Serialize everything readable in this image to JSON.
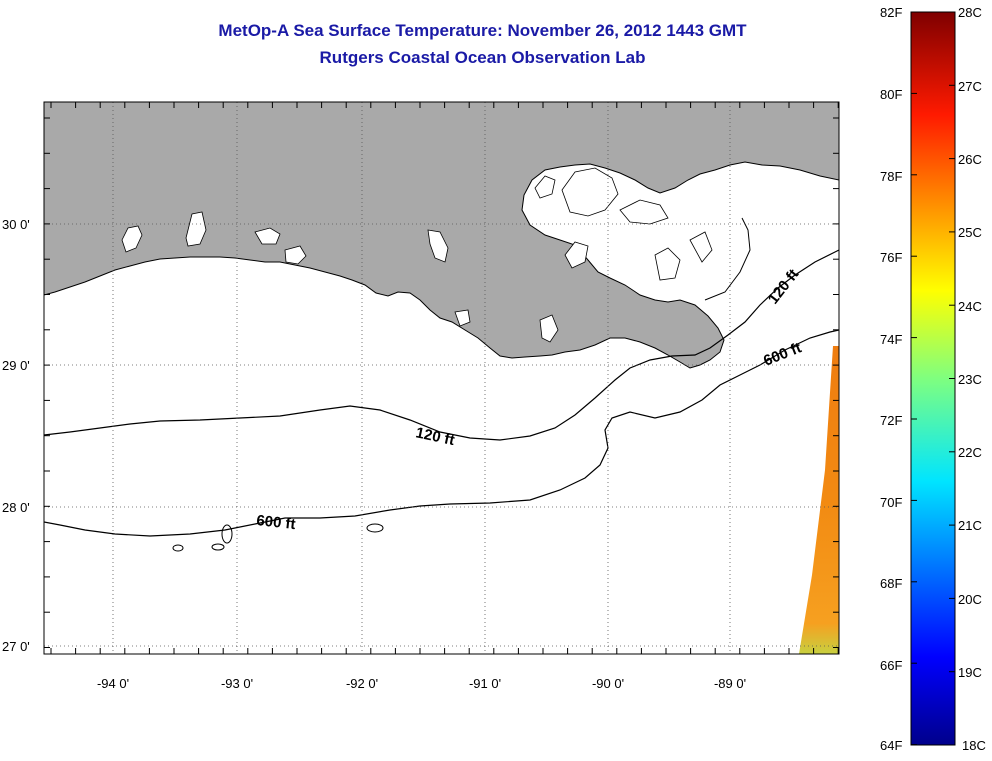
{
  "title": {
    "line1": "MetOp-A Sea Surface Temperature:  November 26, 2012 1443 GMT",
    "line2": "Rutgers Coastal Ocean Observation Lab"
  },
  "map": {
    "lat_labels": [
      "30 0'",
      "29 0'",
      "28 0'",
      "27 0'"
    ],
    "lon_labels": [
      "-94 0'",
      "-93 0'",
      "-92 0'",
      "-91 0'",
      "-90 0'",
      "-89 0'"
    ],
    "contour_labels": [
      "120 ft",
      "600 ft",
      "120 ft",
      "600 ft"
    ],
    "land_color": "#a9a9a9",
    "water_color": "#ffffff"
  },
  "colorbar": {
    "f_labels": [
      "82F",
      "80F",
      "78F",
      "76F",
      "74F",
      "72F",
      "70F",
      "68F",
      "66F",
      "64F"
    ],
    "c_labels": [
      "28C",
      "27C",
      "26C",
      "25C",
      "24C",
      "23C",
      "22C",
      "21C",
      "20C",
      "19C",
      "18C"
    ]
  }
}
